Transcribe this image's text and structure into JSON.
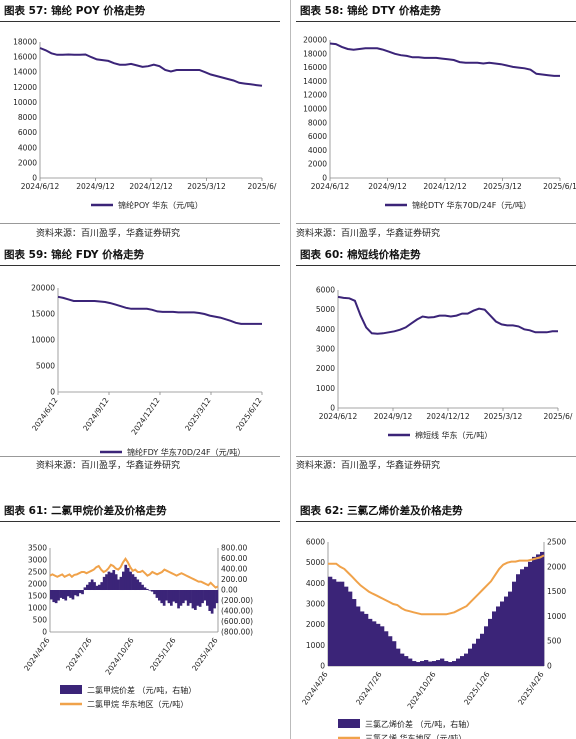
{
  "source_label": "资料来源：百川盈孚，华鑫证券研究",
  "colors": {
    "purple": "#3b2478",
    "orange": "#f0a24a",
    "axis": "#888",
    "grid": "#ddd"
  },
  "chart_data": [
    {
      "id": "c57",
      "type": "line",
      "title": "图表 57:  锦纶 POY 价格走势",
      "x_ticks": [
        "2024/6/12",
        "2024/9/12",
        "2024/12/12",
        "2025/3/12",
        "2025/6/"
      ],
      "y_ticks": [
        "0",
        "2000",
        "4000",
        "6000",
        "8000",
        "10000",
        "12000",
        "14000",
        "16000",
        "18000"
      ],
      "ylim": [
        0,
        18000
      ],
      "series": [
        {
          "name": "锦纶POY  华东（元/吨）",
          "color": "#3b2478",
          "values": [
            17200,
            16900,
            16500,
            16300,
            16300,
            16350,
            16300,
            16300,
            16350,
            16000,
            15700,
            15600,
            15500,
            15200,
            15000,
            15000,
            15100,
            14900,
            14700,
            14800,
            15000,
            14800,
            14300,
            14100,
            14300,
            14300,
            14300,
            14300,
            14300,
            14000,
            13700,
            13500,
            13300,
            13100,
            12900,
            12600,
            12500,
            12400,
            12300,
            12200
          ]
        }
      ],
      "legend": "bottom"
    },
    {
      "id": "c58",
      "type": "line",
      "title": "图表 58:  锦纶 DTY 价格走势",
      "x_ticks": [
        "2024/6/12",
        "2024/9/12",
        "2024/12/12",
        "2025/3/12",
        "2025/6/1"
      ],
      "y_ticks": [
        "0",
        "2000",
        "4000",
        "6000",
        "8000",
        "10000",
        "12000",
        "14000",
        "16000",
        "18000",
        "20000"
      ],
      "ylim": [
        0,
        20000
      ],
      "series": [
        {
          "name": "锦纶DTY  华东70D/24F（元/吨）",
          "color": "#3b2478",
          "values": [
            19500,
            19400,
            19000,
            18700,
            18600,
            18700,
            18800,
            18800,
            18800,
            18600,
            18300,
            18000,
            17800,
            17700,
            17500,
            17500,
            17400,
            17400,
            17400,
            17300,
            17200,
            17100,
            16800,
            16700,
            16700,
            16700,
            16600,
            16700,
            16600,
            16500,
            16300,
            16100,
            16000,
            15900,
            15700,
            15100,
            15000,
            14900,
            14800,
            14800
          ]
        }
      ],
      "legend": "bottom"
    },
    {
      "id": "c59",
      "type": "line",
      "title": "图表 59:  锦纶 FDY 价格走势",
      "x_ticks": [
        "2024/6/12",
        "2024/9/12",
        "2024/12/12",
        "2025/3/12",
        "2025/6/12"
      ],
      "y_ticks": [
        "0",
        "5000",
        "10000",
        "15000",
        "20000"
      ],
      "ylim": [
        0,
        20000
      ],
      "series": [
        {
          "name": "锦纶FDY  华东70D/24F（元/吨）",
          "color": "#3b2478",
          "values": [
            18300,
            18100,
            17800,
            17500,
            17500,
            17500,
            17500,
            17500,
            17400,
            17300,
            17100,
            16800,
            16500,
            16200,
            16000,
            16000,
            16000,
            16000,
            15800,
            15500,
            15400,
            15400,
            15400,
            15300,
            15300,
            15300,
            15300,
            15200,
            15000,
            14700,
            14500,
            14300,
            14000,
            13700,
            13300,
            13100,
            13100,
            13100,
            13100,
            13100
          ]
        }
      ],
      "legend": "bottom"
    },
    {
      "id": "c60",
      "type": "line",
      "title": "图表 60:  棉短线价格走势",
      "x_ticks": [
        "2024/6/12",
        "2024/9/12",
        "2024/12/12",
        "2025/3/12",
        "2025/6/"
      ],
      "y_ticks": [
        "0",
        "1000",
        "2000",
        "3000",
        "4000",
        "5000",
        "6000"
      ],
      "ylim": [
        0,
        6000
      ],
      "series": [
        {
          "name": "棉短线  华东（元/吨）",
          "color": "#3b2478",
          "values": [
            5650,
            5600,
            5580,
            5450,
            4700,
            4100,
            3800,
            3780,
            3800,
            3850,
            3900,
            3980,
            4100,
            4300,
            4500,
            4650,
            4600,
            4620,
            4700,
            4700,
            4650,
            4700,
            4800,
            4800,
            4950,
            5050,
            5000,
            4700,
            4400,
            4250,
            4200,
            4200,
            4150,
            4000,
            3950,
            3850,
            3850,
            3850,
            3900,
            3900
          ]
        }
      ],
      "legend": "bottom"
    },
    {
      "id": "c61",
      "type": "bar+line",
      "title": "图表 61:  二氯甲烷价差及价格走势",
      "x_ticks": [
        "2024/4/26",
        "2024/7/26",
        "2024/10/26",
        "2025/1/26",
        "2025/4/26"
      ],
      "y_left_ticks": [
        "0",
        "500",
        "1000",
        "1500",
        "2000",
        "2500",
        "3000",
        "3500"
      ],
      "y_right_ticks": [
        "(800.00)",
        "(600.00)",
        "(400.00)",
        "(200.00)",
        "0.00",
        "200.00",
        "400.00",
        "600.00",
        "800.00"
      ],
      "ylim_left": [
        0,
        3500
      ],
      "ylim_right": [
        -800,
        800
      ],
      "series": [
        {
          "name": "二氯甲烷价差  （元/吨，右轴）",
          "type": "bar",
          "axis": "right",
          "color": "#3b2478",
          "values": [
            -180,
            -230,
            -250,
            -200,
            -150,
            -170,
            -200,
            -120,
            -150,
            -180,
            -100,
            -120,
            -60,
            -80,
            50,
            100,
            150,
            200,
            150,
            80,
            100,
            150,
            250,
            300,
            350,
            330,
            380,
            300,
            200,
            250,
            350,
            480,
            420,
            350,
            300,
            250,
            200,
            150,
            100,
            50,
            20,
            -10,
            -30,
            -80,
            -150,
            -200,
            -250,
            -300,
            -200,
            -250,
            -300,
            -220,
            -250,
            -350,
            -300,
            -250,
            -200,
            -300,
            -250,
            -350,
            -380,
            -300,
            -320,
            -250,
            -200,
            -300,
            -400,
            -450,
            -350,
            -250
          ]
        },
        {
          "name": "二氯甲烷  华东地区（元/吨）",
          "type": "line",
          "axis": "left",
          "color": "#f0a24a",
          "values": [
            2350,
            2400,
            2350,
            2300,
            2350,
            2400,
            2300,
            2350,
            2400,
            2300,
            2380,
            2400,
            2450,
            2500,
            2500,
            2450,
            2500,
            2550,
            2600,
            2700,
            2750,
            2600,
            2500,
            2550,
            2650,
            2800,
            2750,
            2650,
            2600,
            2700,
            2900,
            3050,
            2900,
            2700,
            2550,
            2600,
            2500,
            2500,
            2550,
            2450,
            2350,
            2400,
            2500,
            2450,
            2400,
            2450,
            2500,
            2600,
            2550,
            2500,
            2450,
            2400,
            2350,
            2400,
            2450,
            2400,
            2350,
            2300,
            2250,
            2200,
            2150,
            2100,
            2100,
            2050,
            2000,
            1950,
            2050,
            1950,
            1850,
            1900
          ]
        }
      ],
      "legend": "bottom"
    },
    {
      "id": "c62",
      "type": "bar+line",
      "title": "图表 62:  三氯乙烯价差及价格走势",
      "x_ticks": [
        "2024/4/26",
        "2024/7/26",
        "2024/10/26",
        "2025/1/26",
        "2025/4/26"
      ],
      "y_left_ticks": [
        "0",
        "1000",
        "2000",
        "3000",
        "4000",
        "5000",
        "6000"
      ],
      "y_right_ticks": [
        "0",
        "500",
        "1000",
        "1500",
        "2000",
        "2500"
      ],
      "ylim_left": [
        0,
        6000
      ],
      "ylim_right": [
        0,
        2500
      ],
      "series": [
        {
          "name": "三氯乙烯价差  （元/吨，右轴）",
          "type": "bar",
          "axis": "right",
          "color": "#3b2478",
          "values": [
            1800,
            1750,
            1700,
            1700,
            1600,
            1500,
            1350,
            1200,
            1100,
            1050,
            950,
            900,
            850,
            800,
            700,
            600,
            500,
            350,
            250,
            200,
            150,
            100,
            80,
            100,
            120,
            90,
            100,
            120,
            150,
            100,
            80,
            100,
            150,
            200,
            250,
            350,
            450,
            550,
            650,
            800,
            950,
            1100,
            1200,
            1300,
            1400,
            1500,
            1700,
            1850,
            1950,
            2000,
            2100,
            2200,
            2250,
            2300
          ]
        },
        {
          "name": "三氯乙烯  华东地区（元/吨）",
          "type": "line",
          "axis": "left",
          "color": "#f0a24a",
          "values": [
            4950,
            4950,
            4950,
            4800,
            4700,
            4500,
            4300,
            4100,
            3900,
            3750,
            3600,
            3500,
            3400,
            3300,
            3200,
            3100,
            3000,
            2950,
            2800,
            2700,
            2650,
            2600,
            2550,
            2500,
            2500,
            2500,
            2500,
            2500,
            2500,
            2500,
            2550,
            2600,
            2700,
            2800,
            2900,
            3100,
            3300,
            3500,
            3700,
            3900,
            4100,
            4400,
            4700,
            4900,
            5000,
            5050,
            5050,
            5100,
            5100,
            5100,
            5150,
            5200,
            5250,
            5350
          ]
        }
      ],
      "legend": "bottom"
    }
  ]
}
